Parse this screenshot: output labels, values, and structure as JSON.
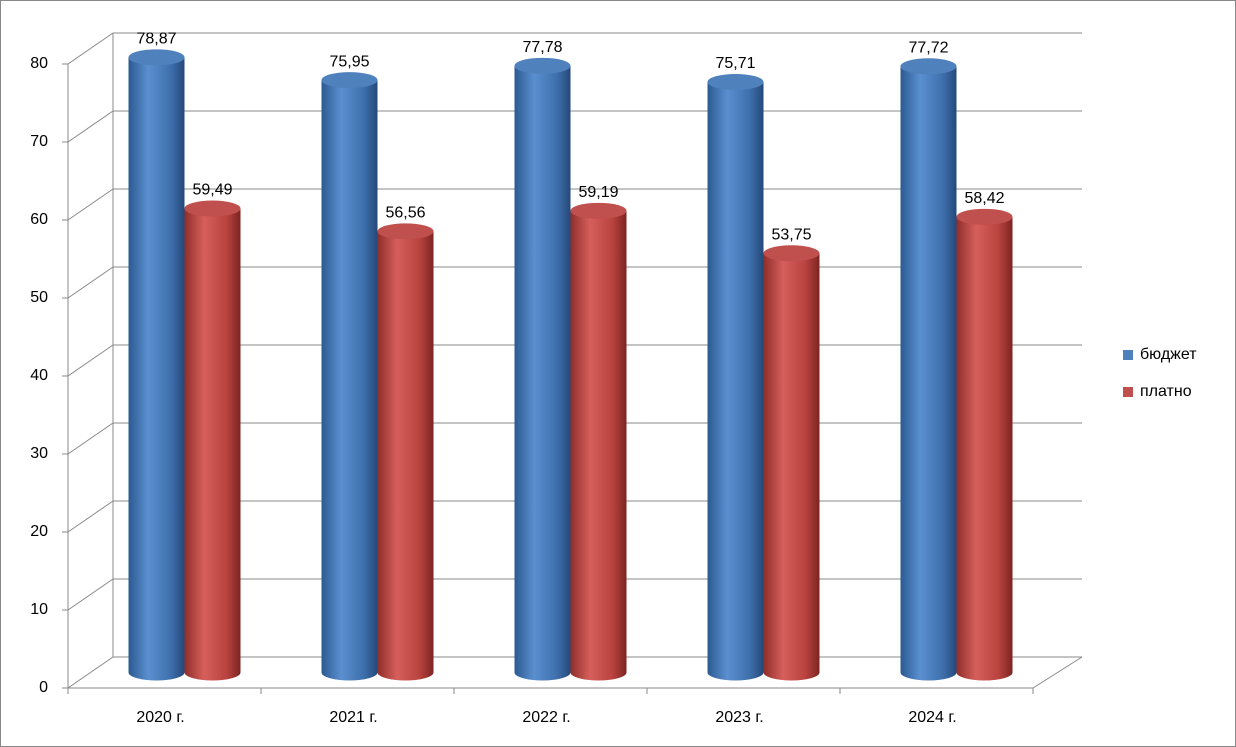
{
  "chart_data": {
    "type": "bar3d",
    "categories": [
      "2020 г.",
      "2021 г.",
      "2022 г.",
      "2023 г.",
      "2024 г."
    ],
    "series": [
      {
        "name": "бюджет",
        "color": "#4f81bd",
        "values": [
          78.87,
          75.95,
          77.78,
          75.71,
          77.72
        ],
        "value_labels": [
          "78,87",
          "75,95",
          "77,78",
          "75,71",
          "77,72"
        ]
      },
      {
        "name": "платно",
        "color": "#c0504d",
        "values": [
          59.49,
          56.56,
          59.19,
          53.75,
          58.42
        ],
        "value_labels": [
          "59,49",
          "56,56",
          "59,19",
          "53,75",
          "58,42"
        ]
      }
    ],
    "ylim": [
      0,
      80
    ],
    "yticks": [
      0,
      10,
      20,
      30,
      40,
      50,
      60,
      70,
      80
    ],
    "grid": true,
    "legend": "right"
  }
}
